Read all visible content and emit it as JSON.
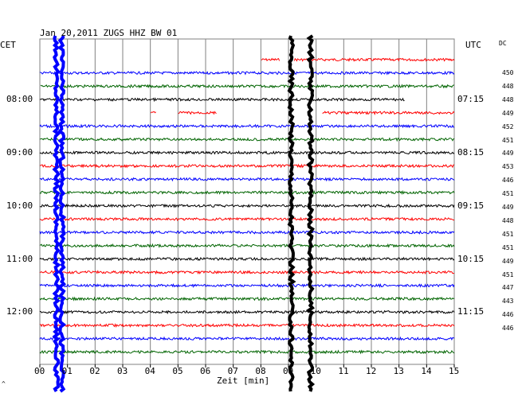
{
  "header": {
    "title": "Jan 20,2011   ZUGS HHZ BW 01",
    "left_zone": "CET",
    "right_zone": "UTC",
    "dc_label": "DC"
  },
  "x_axis": {
    "label": "Zeit [min]",
    "ticks": [
      "00",
      "01",
      "02",
      "03",
      "04",
      "05",
      "06",
      "07",
      "08",
      "09",
      "10",
      "11",
      "12",
      "13",
      "14",
      "15"
    ]
  },
  "left_times": [
    "08:00",
    "09:00",
    "10:00",
    "11:00",
    "12:00"
  ],
  "right_times": [
    "07:15",
    "08:15",
    "09:15",
    "10:15",
    "11:15"
  ],
  "dc_values": [
    "450",
    "448",
    "448",
    "449",
    "452",
    "451",
    "449",
    "453",
    "446",
    "451",
    "449",
    "448",
    "451",
    "451",
    "449",
    "451",
    "447",
    "443",
    "446",
    "446"
  ],
  "footer_mark": "^",
  "colors": {
    "red": "#ff0000",
    "blue": "#0000ff",
    "green": "#006400",
    "black": "#000000",
    "grid": "#808080"
  },
  "chart_data": {
    "type": "line",
    "title": "Jan 20,2011   ZUGS HHZ BW 01",
    "xlabel": "Zeit [min]",
    "xlim": [
      0,
      15
    ],
    "trace_count": 23,
    "trace_color_cycle": [
      "red",
      "blue",
      "green",
      "black"
    ],
    "data_gaps": [
      {
        "trace": 0,
        "from_min": 0,
        "to_min": 8.0
      },
      {
        "trace": 0,
        "from_min": 8.7,
        "to_min": 9.2
      },
      {
        "trace": 2,
        "from_min": 0,
        "to_min": 0
      },
      {
        "trace": 3,
        "from_min": 13.2,
        "to_min": 15
      },
      {
        "trace": 4,
        "from_min": 0,
        "to_min": 4.0
      },
      {
        "trace": 4,
        "from_min": 4.2,
        "to_min": 5.0
      },
      {
        "trace": 4,
        "from_min": 6.4,
        "to_min": 10.2
      }
    ],
    "events": [
      {
        "time_min": 0.6,
        "color": "blue",
        "type": "spike"
      },
      {
        "time_min": 0.8,
        "color": "blue",
        "type": "spike"
      },
      {
        "time_min": 9.1,
        "color": "black",
        "type": "spike"
      },
      {
        "time_min": 9.8,
        "color": "black",
        "type": "spike"
      }
    ],
    "grid": true
  }
}
